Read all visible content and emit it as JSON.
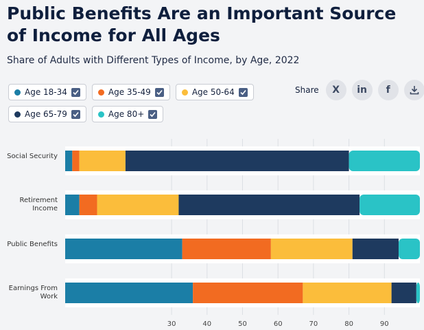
{
  "chart_data": {
    "type": "stacked-bar-horizontal",
    "title": "Public Benefits Are an Important Source of Income for All Ages",
    "subtitle": "Share of Adults with Different Types of Income, by Age, 2022",
    "categories": [
      "Social Security",
      "Retirement Income",
      "Public Benefits",
      "Earnings From Work"
    ],
    "series": [
      {
        "name": "Age 18-34",
        "color": "#1b7ea6",
        "values": [
          2,
          4,
          33,
          36
        ]
      },
      {
        "name": "Age 35-49",
        "color": "#f26b21",
        "values": [
          2,
          5,
          25,
          31
        ]
      },
      {
        "name": "Age 50-64",
        "color": "#fbbd3b",
        "values": [
          13,
          23,
          23,
          25
        ]
      },
      {
        "name": "Age 65-79",
        "color": "#1e3a5f",
        "values": [
          63,
          51,
          13,
          7
        ]
      },
      {
        "name": "Age 80+",
        "color": "#2ac3c6",
        "values": [
          20,
          17,
          6,
          1
        ]
      }
    ],
    "xlim": [
      0,
      100
    ],
    "xticks": [
      30,
      40,
      50,
      60,
      70,
      80,
      90
    ],
    "grid": true
  },
  "share": {
    "label": "Share",
    "buttons": [
      "X",
      "in",
      "f"
    ]
  }
}
